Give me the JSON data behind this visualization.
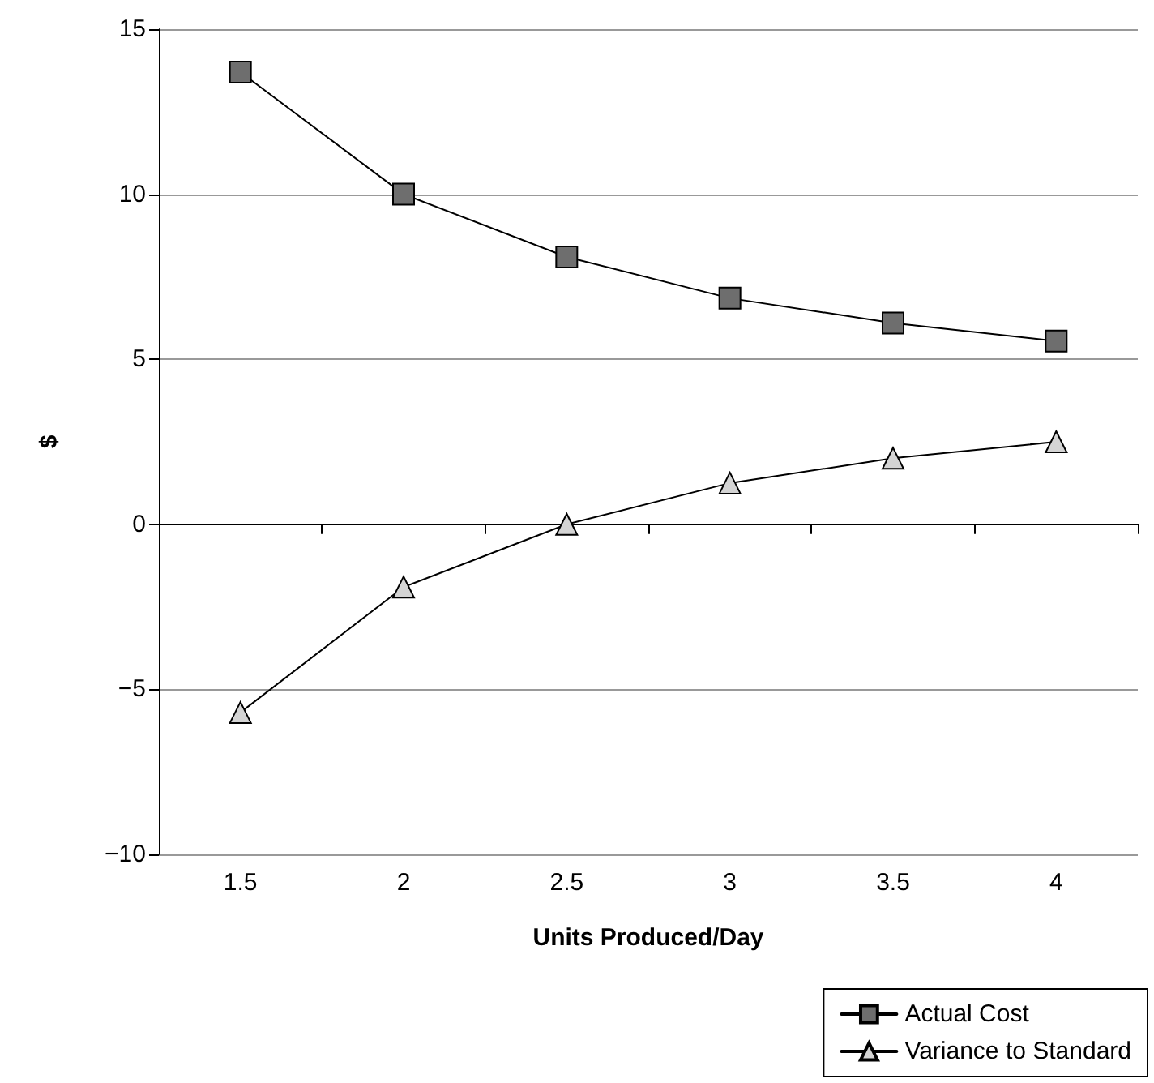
{
  "chart_data": {
    "type": "line",
    "xlabel": "Units Produced/Day",
    "ylabel": "$",
    "categories": [
      "1.5",
      "2",
      "2.5",
      "3",
      "3.5",
      "4"
    ],
    "series": [
      {
        "name": "Actual Cost",
        "color": "#6e6e6e",
        "marker": "square",
        "values": [
          13.7,
          10,
          8.1,
          6.85,
          6.1,
          5.55
        ]
      },
      {
        "name": "Variance to Standard",
        "color": "#d4d4d4",
        "marker": "triangle",
        "values": [
          -5.7,
          -1.9,
          0,
          1.25,
          2.0,
          2.5
        ]
      }
    ],
    "ylim": [
      -10,
      15
    ],
    "yticks": [
      -10,
      -5,
      0,
      5,
      10,
      15
    ],
    "grid": "y",
    "legend": "bottom right",
    "line_style": "solid"
  }
}
